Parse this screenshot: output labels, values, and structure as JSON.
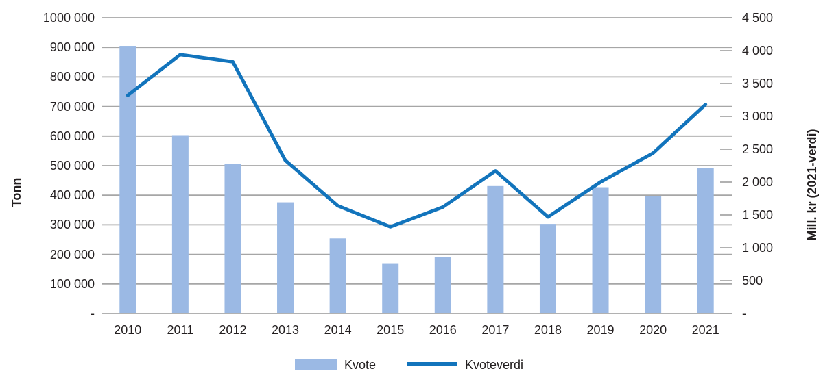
{
  "chart_data": {
    "type": "bar+line",
    "categories": [
      "2010",
      "2011",
      "2012",
      "2013",
      "2014",
      "2015",
      "2016",
      "2017",
      "2018",
      "2019",
      "2020",
      "2021"
    ],
    "series": [
      {
        "name": "Kvote",
        "type": "bar",
        "axis": "left",
        "unit": "tonn",
        "color": "#9BB9E4",
        "values": [
          905000,
          603000,
          506000,
          376000,
          254000,
          170000,
          192000,
          431000,
          303000,
          427000,
          398000,
          492000
        ]
      },
      {
        "name": "Kvoteverdi",
        "type": "line",
        "axis": "right",
        "unit": "mill. kr (2021-verdi)",
        "color": "#1274BC",
        "values": [
          3320,
          3940,
          3830,
          2330,
          1640,
          1320,
          1620,
          2170,
          1470,
          2000,
          2440,
          3180
        ]
      }
    ],
    "left_axis": {
      "title": "Tonn",
      "min": 0,
      "max": 1000000,
      "tick_step": 100000,
      "tick_labels_top_to_bottom": [
        "1000 000",
        "900 000",
        "800 000",
        "700 000",
        "600 000",
        "500 000",
        "400 000",
        "300 000",
        "200 000",
        "100 000",
        "-"
      ]
    },
    "right_axis": {
      "title": "Mill. kr (2021-verdi)",
      "min": 0,
      "max": 4500,
      "tick_step": 500,
      "tick_labels_top_to_bottom": [
        "4 500",
        "4 000",
        "3 500",
        "3 000",
        "2 500",
        "2 000",
        "1 500",
        "1 000",
        "500",
        "-"
      ]
    },
    "legend": {
      "items": [
        "Kvote",
        "Kvoteverdi"
      ],
      "position": "bottom-center"
    },
    "grid": true,
    "grid_color": "#A6A6A6",
    "text_color": "#231F20"
  }
}
